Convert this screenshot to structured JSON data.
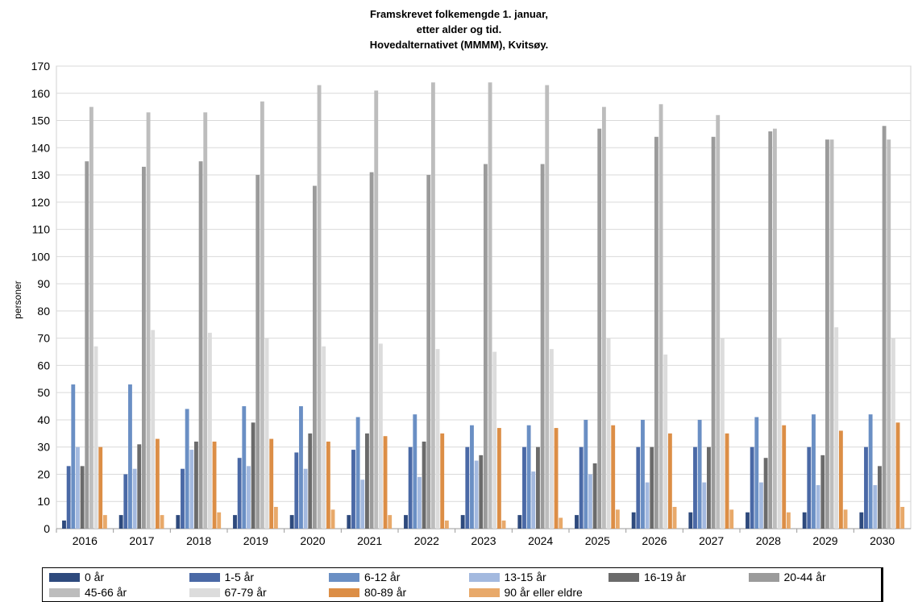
{
  "chart_data": {
    "type": "bar",
    "title_lines": [
      "Framskrevet folkemengde 1. januar,",
      "etter alder og tid.",
      "Hovedalternativet (MMMM), Kvitsøy."
    ],
    "xlabel": "",
    "ylabel": "personer",
    "ylim": [
      0,
      170
    ],
    "yticks": [
      0,
      10,
      20,
      30,
      40,
      50,
      60,
      70,
      80,
      90,
      100,
      110,
      120,
      130,
      140,
      150,
      160,
      170
    ],
    "grid": true,
    "legend_position": "bottom",
    "categories": [
      "2016",
      "2017",
      "2018",
      "2019",
      "2020",
      "2021",
      "2022",
      "2023",
      "2024",
      "2025",
      "2026",
      "2027",
      "2028",
      "2029",
      "2030"
    ],
    "series": [
      {
        "name": "0 år",
        "color": "#2e4a7d",
        "values": [
          3,
          5,
          5,
          5,
          5,
          5,
          5,
          5,
          5,
          5,
          6,
          6,
          6,
          6,
          6
        ]
      },
      {
        "name": "1-5 år",
        "color": "#4a69a6",
        "values": [
          23,
          20,
          22,
          26,
          28,
          29,
          30,
          30,
          30,
          30,
          30,
          30,
          30,
          30,
          30
        ]
      },
      {
        "name": "6-12 år",
        "color": "#6a8fc4",
        "values": [
          53,
          53,
          44,
          45,
          45,
          41,
          42,
          38,
          38,
          40,
          40,
          40,
          41,
          42,
          42
        ]
      },
      {
        "name": "13-15 år",
        "color": "#a3b9df",
        "values": [
          30,
          22,
          29,
          23,
          22,
          18,
          19,
          25,
          21,
          20,
          17,
          17,
          17,
          16,
          16
        ]
      },
      {
        "name": "16-19 år",
        "color": "#6b6b6b",
        "values": [
          23,
          31,
          32,
          39,
          35,
          35,
          32,
          27,
          30,
          24,
          30,
          30,
          26,
          27,
          23
        ]
      },
      {
        "name": "20-44 år",
        "color": "#9b9b9b",
        "values": [
          135,
          133,
          135,
          130,
          126,
          131,
          130,
          134,
          134,
          147,
          144,
          144,
          146,
          143,
          148
        ]
      },
      {
        "name": "45-66 år",
        "color": "#bdbdbd",
        "values": [
          155,
          153,
          153,
          157,
          163,
          161,
          164,
          164,
          163,
          155,
          156,
          152,
          147,
          143,
          143
        ]
      },
      {
        "name": "67-79 år",
        "color": "#dcdcdc",
        "values": [
          67,
          73,
          72,
          70,
          67,
          68,
          66,
          65,
          66,
          70,
          64,
          70,
          70,
          74,
          70
        ]
      },
      {
        "name": "80-89 år",
        "color": "#dc8e46",
        "values": [
          30,
          33,
          32,
          33,
          32,
          34,
          35,
          37,
          37,
          38,
          35,
          35,
          38,
          36,
          39
        ]
      },
      {
        "name": "90 år eller eldre",
        "color": "#e8a96a",
        "values": [
          5,
          5,
          6,
          8,
          7,
          5,
          3,
          3,
          4,
          7,
          8,
          7,
          6,
          7,
          8
        ]
      }
    ]
  }
}
